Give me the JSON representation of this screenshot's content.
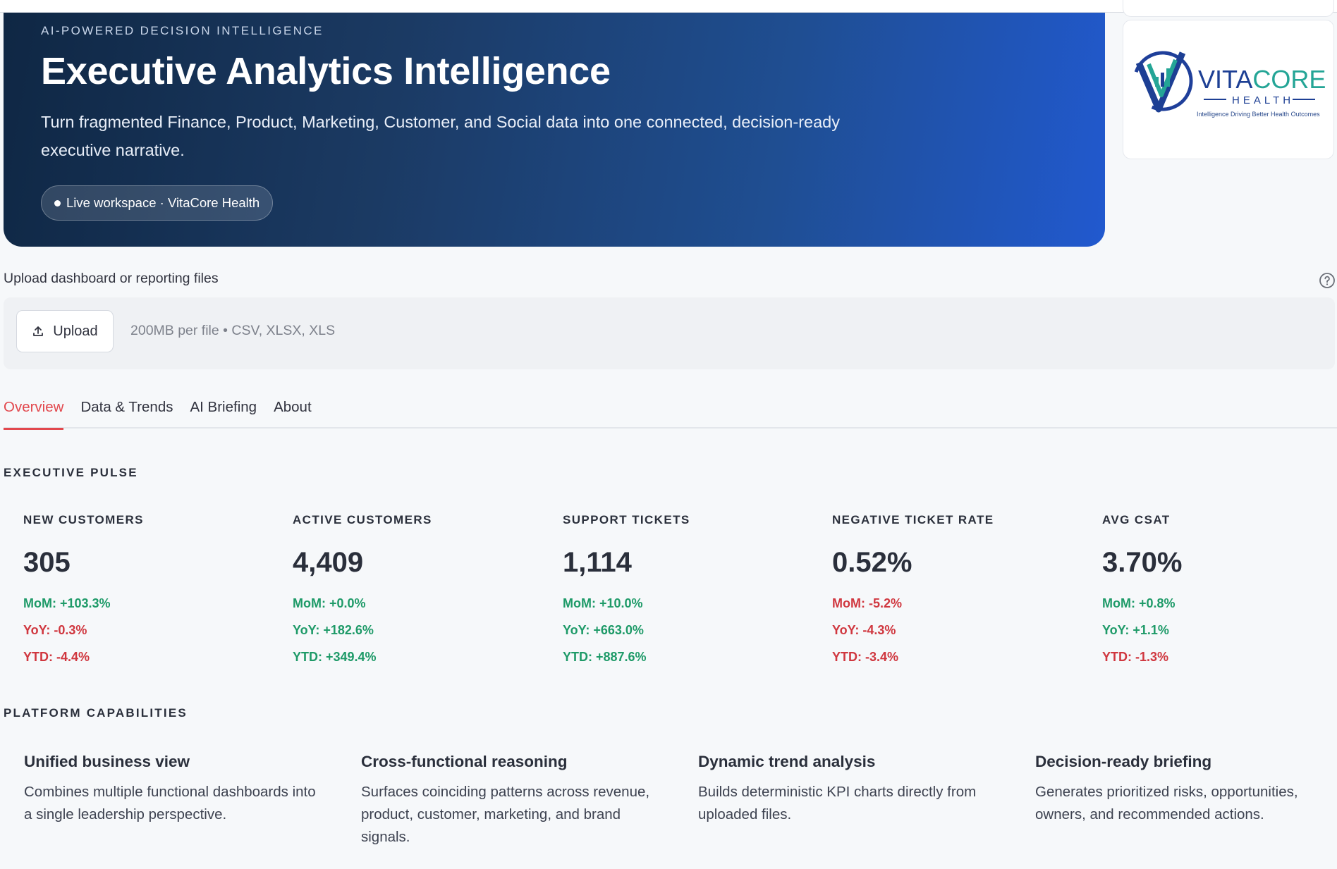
{
  "hero": {
    "eyebrow": "AI-POWERED DECISION INTELLIGENCE",
    "title": "Executive Analytics Intelligence",
    "subtitle": "Turn fragmented Finance, Product, Marketing, Customer, and Social data into one connected, decision-ready executive narrative.",
    "pill": "Live workspace · VitaCore Health"
  },
  "logo": {
    "name_part1": "VITA",
    "name_part2": "CORE",
    "sub": "HEALTH",
    "tagline": "Intelligence Driving Better Health Outcomes"
  },
  "upload": {
    "label": "Upload dashboard or reporting files",
    "button_label": "Upload",
    "hint": "200MB per file • CSV, XLSX, XLS"
  },
  "tabs": [
    {
      "label": "Overview",
      "active": true
    },
    {
      "label": "Data & Trends",
      "active": false
    },
    {
      "label": "AI Briefing",
      "active": false
    },
    {
      "label": "About",
      "active": false
    }
  ],
  "pulse": {
    "heading": "EXECUTIVE PULSE",
    "kpis": [
      {
        "label": "NEW CUSTOMERS",
        "value": "305",
        "deltas": [
          {
            "text": "MoM: +103.3%",
            "tone": "positive"
          },
          {
            "text": "YoY: -0.3%",
            "tone": "negative"
          },
          {
            "text": "YTD: -4.4%",
            "tone": "negative"
          }
        ]
      },
      {
        "label": "ACTIVE CUSTOMERS",
        "value": "4,409",
        "deltas": [
          {
            "text": "MoM: +0.0%",
            "tone": "positive"
          },
          {
            "text": "YoY: +182.6%",
            "tone": "positive"
          },
          {
            "text": "YTD: +349.4%",
            "tone": "positive"
          }
        ]
      },
      {
        "label": "SUPPORT TICKETS",
        "value": "1,114",
        "deltas": [
          {
            "text": "MoM: +10.0%",
            "tone": "positive"
          },
          {
            "text": "YoY: +663.0%",
            "tone": "positive"
          },
          {
            "text": "YTD: +887.6%",
            "tone": "positive"
          }
        ]
      },
      {
        "label": "NEGATIVE TICKET RATE",
        "value": "0.52%",
        "deltas": [
          {
            "text": "MoM: -5.2%",
            "tone": "negative"
          },
          {
            "text": "YoY: -4.3%",
            "tone": "negative"
          },
          {
            "text": "YTD: -3.4%",
            "tone": "negative"
          }
        ]
      },
      {
        "label": "AVG CSAT",
        "value": "3.70%",
        "deltas": [
          {
            "text": "MoM: +0.8%",
            "tone": "positive"
          },
          {
            "text": "YoY: +1.1%",
            "tone": "positive"
          },
          {
            "text": "YTD: -1.3%",
            "tone": "negative"
          }
        ]
      }
    ]
  },
  "capabilities": {
    "heading": "PLATFORM CAPABILITIES",
    "items": [
      {
        "title": "Unified business view",
        "text": "Combines multiple functional dashboards into a single leadership perspective."
      },
      {
        "title": "Cross-functional reasoning",
        "text": "Surfaces coinciding patterns across revenue, product, customer, marketing, and brand signals."
      },
      {
        "title": "Dynamic trend analysis",
        "text": "Builds deterministic KPI charts directly from uploaded files."
      },
      {
        "title": "Decision-ready briefing",
        "text": "Generates prioritized risks, opportunities, owners, and recommended actions."
      }
    ]
  },
  "colors": {
    "accent": "#e2484d",
    "positive": "#1e9a68",
    "negative": "#d0373f",
    "hero_start": "#0f2744",
    "hero_end": "#2159cf"
  }
}
